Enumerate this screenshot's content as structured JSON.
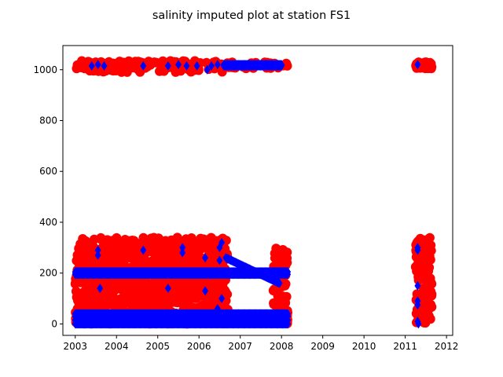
{
  "chart_data": {
    "type": "scatter",
    "title": "salinity imputed plot at station FS1",
    "xlabel": "",
    "ylabel": "",
    "xlim": [
      2002.7,
      2012.15
    ],
    "ylim": [
      -45,
      1095
    ],
    "x_ticks": [
      "2003",
      "2004",
      "2005",
      "2006",
      "2007",
      "2008",
      "2009",
      "2010",
      "2011",
      "2012"
    ],
    "y_ticks": [
      "0",
      "200",
      "400",
      "600",
      "800",
      "1000"
    ],
    "grid": false,
    "legend": "none",
    "series": [
      {
        "marker": "circle",
        "color": "#ff0000",
        "clusters": [
          {
            "x_range": [
              2003.0,
              2006.65
            ],
            "y_range": [
              990,
              1035
            ]
          },
          {
            "x_range": [
              2006.65,
              2008.15
            ],
            "y_range": [
              1005,
              1030
            ]
          },
          {
            "x_range": [
              2003.0,
              2006.7
            ],
            "y_range": [
              0,
              340
            ]
          },
          {
            "x_range": [
              2007.8,
              2008.15
            ],
            "y_range": [
              0,
              300
            ]
          },
          {
            "x_range": [
              2011.25,
              2011.65
            ],
            "y_range": [
              1005,
              1030
            ]
          },
          {
            "x_range": [
              2011.25,
              2011.65
            ],
            "y_range": [
              0,
              340
            ]
          }
        ]
      },
      {
        "marker": "diamond",
        "color": "#0000ff",
        "bands": [
          {
            "x_range": [
              2003.0,
              2008.15
            ],
            "y": 0
          },
          {
            "x_range": [
              2003.0,
              2008.15
            ],
            "y": 15
          },
          {
            "x_range": [
              2003.0,
              2008.15
            ],
            "y": 30
          },
          {
            "x_range": [
              2003.0,
              2008.15
            ],
            "y": 40
          },
          {
            "x_range": [
              2003.0,
              2008.15
            ],
            "y": 195
          },
          {
            "x_range": [
              2003.0,
              2008.15
            ],
            "y": 205
          },
          {
            "x_range": [
              2006.6,
              2008.0
            ],
            "y": 1015
          },
          {
            "x_range": [
              2006.6,
              2008.0
            ],
            "y": 1020
          }
        ],
        "diagonal": {
          "from": [
            2006.65,
            260
          ],
          "to": [
            2007.95,
            160
          ]
        },
        "points": [
          [
            2003.4,
            1015
          ],
          [
            2003.55,
            1020
          ],
          [
            2003.7,
            1015
          ],
          [
            2004.65,
            1015
          ],
          [
            2005.25,
            1015
          ],
          [
            2005.5,
            1020
          ],
          [
            2005.7,
            1015
          ],
          [
            2005.95,
            1015
          ],
          [
            2006.2,
            1000
          ],
          [
            2006.3,
            1015
          ],
          [
            2006.45,
            1020
          ],
          [
            2003.55,
            290
          ],
          [
            2003.55,
            270
          ],
          [
            2003.6,
            140
          ],
          [
            2003.6,
            5
          ],
          [
            2004.65,
            290
          ],
          [
            2005.25,
            140
          ],
          [
            2005.6,
            300
          ],
          [
            2005.6,
            280
          ],
          [
            2006.15,
            260
          ],
          [
            2006.15,
            130
          ],
          [
            2006.5,
            300
          ],
          [
            2006.55,
            320
          ],
          [
            2006.5,
            250
          ],
          [
            2006.55,
            100
          ],
          [
            2006.45,
            60
          ],
          [
            2003.6,
            20
          ],
          [
            2005.45,
            10
          ],
          [
            2006.0,
            5
          ],
          [
            2006.25,
            5
          ],
          [
            2011.3,
            1020
          ],
          [
            2011.3,
            300
          ],
          [
            2011.3,
            290
          ],
          [
            2011.3,
            150
          ],
          [
            2011.3,
            90
          ],
          [
            2011.3,
            75
          ],
          [
            2011.3,
            10
          ],
          [
            2011.32,
            0
          ]
        ]
      }
    ]
  }
}
